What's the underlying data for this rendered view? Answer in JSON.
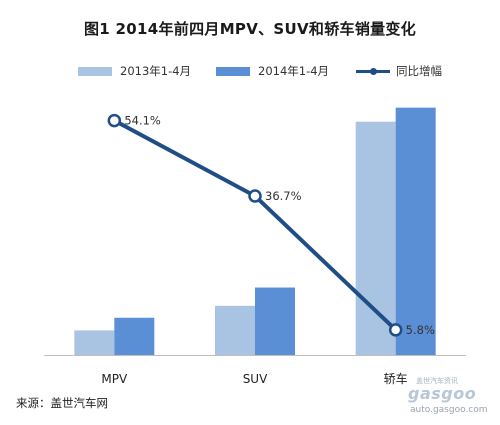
{
  "chart_data": {
    "type": "bar",
    "title": "图1    2014年前四月MPV、SUV和轿车销量变化",
    "categories": [
      "MPV",
      "SUV",
      "轿车"
    ],
    "series": [
      {
        "name": "2013年1-4月",
        "values": [
          35,
          70,
          332
        ],
        "color": "#a9c3e3"
      },
      {
        "name": "2014年1-4月",
        "values": [
          53,
          96,
          352
        ],
        "color": "#5a8fd6"
      }
    ],
    "line_series": {
      "name": "同比增幅",
      "values": [
        54.1,
        36.7,
        5.8
      ],
      "labels": [
        "54.1%",
        "36.7%",
        "5.8%"
      ],
      "color": "#1f4e86"
    },
    "ylim": [
      0,
      370
    ],
    "line_ylim": [
      0,
      60
    ],
    "grid": false,
    "legend_position": "top"
  },
  "source": "来源：盖世汽车网",
  "watermark": {
    "brand": "gasgoo",
    "url": "auto.gasgoo.com",
    "cn": "盖世汽车资讯"
  }
}
